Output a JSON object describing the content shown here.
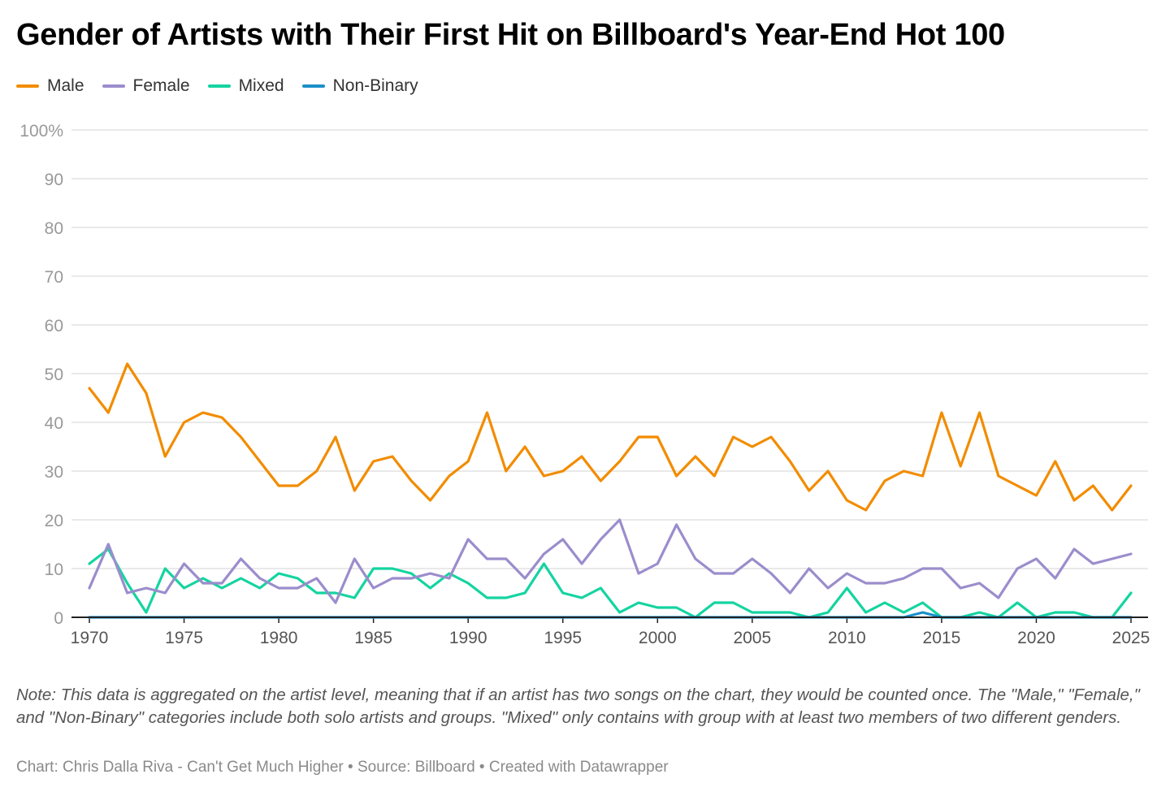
{
  "title": "Gender of Artists with Their First Hit on Billboard's Year-End Hot 100",
  "note": "Note: This data is aggregated on the artist level, meaning that if an artist has two songs on the chart, they would be counted once. The \"Male,\" \"Female,\" and \"Non-Binary\" categories include both solo artists and groups. \"Mixed\" only contains with group with at least two members of two different genders.",
  "credit": "Chart: Chris Dalla Riva - Can't Get Much Higher • Source: Billboard • Created with Datawrapper",
  "chart_data": {
    "type": "line",
    "title": "Gender of Artists with Their First Hit on Billboard's Year-End Hot 100",
    "xlabel": "",
    "ylabel": "",
    "xlim": [
      1970,
      2025
    ],
    "ylim": [
      0,
      100
    ],
    "y_ticks": [
      0,
      10,
      20,
      30,
      40,
      50,
      60,
      70,
      80,
      90,
      100
    ],
    "y_tick_labels": [
      "0",
      "10",
      "20",
      "30",
      "40",
      "50",
      "60",
      "70",
      "80",
      "90",
      "100%"
    ],
    "x_ticks": [
      1970,
      1975,
      1980,
      1985,
      1990,
      1995,
      2000,
      2005,
      2010,
      2015,
      2020,
      2025
    ],
    "x_tick_labels": [
      "1970",
      "1975",
      "1980",
      "1985",
      "1990",
      "1995",
      "2000",
      "2005",
      "2010",
      "2015",
      "2020",
      "2025"
    ],
    "legend_position": "top-left",
    "grid": true,
    "x": [
      1970,
      1971,
      1972,
      1973,
      1974,
      1975,
      1976,
      1977,
      1978,
      1979,
      1980,
      1981,
      1982,
      1983,
      1984,
      1985,
      1986,
      1987,
      1988,
      1989,
      1990,
      1991,
      1992,
      1993,
      1994,
      1995,
      1996,
      1997,
      1998,
      1999,
      2000,
      2001,
      2002,
      2003,
      2004,
      2005,
      2006,
      2007,
      2008,
      2009,
      2010,
      2011,
      2012,
      2013,
      2014,
      2015,
      2016,
      2017,
      2018,
      2019,
      2020,
      2021,
      2022,
      2023,
      2024,
      2025
    ],
    "series": [
      {
        "name": "Male",
        "color": "#f28c00",
        "values": [
          47,
          42,
          52,
          46,
          33,
          40,
          42,
          41,
          37,
          32,
          27,
          27,
          30,
          37,
          26,
          32,
          33,
          28,
          24,
          29,
          32,
          42,
          30,
          35,
          29,
          30,
          33,
          28,
          32,
          37,
          37,
          29,
          33,
          29,
          37,
          35,
          37,
          32,
          26,
          30,
          24,
          22,
          28,
          30,
          29,
          42,
          31,
          42,
          29,
          27,
          25,
          32,
          24,
          27,
          22,
          27
        ]
      },
      {
        "name": "Female",
        "color": "#9b8dcc",
        "values": [
          6,
          15,
          5,
          6,
          5,
          11,
          7,
          7,
          12,
          8,
          6,
          6,
          8,
          3,
          12,
          6,
          8,
          8,
          9,
          8,
          16,
          12,
          12,
          8,
          13,
          16,
          11,
          16,
          20,
          9,
          11,
          19,
          12,
          9,
          9,
          12,
          9,
          5,
          10,
          6,
          9,
          7,
          7,
          8,
          10,
          10,
          6,
          7,
          4,
          10,
          12,
          8,
          14,
          11,
          12,
          13
        ]
      },
      {
        "name": "Mixed",
        "color": "#14d4a0",
        "values": [
          11,
          14,
          7,
          1,
          10,
          6,
          8,
          6,
          8,
          6,
          9,
          8,
          5,
          5,
          4,
          10,
          10,
          9,
          6,
          9,
          7,
          4,
          4,
          5,
          11,
          5,
          4,
          6,
          1,
          3,
          2,
          2,
          0,
          3,
          3,
          1,
          1,
          1,
          0,
          1,
          6,
          1,
          3,
          1,
          3,
          0,
          0,
          1,
          0,
          3,
          0,
          1,
          1,
          0,
          0,
          5
        ]
      },
      {
        "name": "Non-Binary",
        "color": "#1a8fc9",
        "values": [
          0,
          0,
          0,
          0,
          0,
          0,
          0,
          0,
          0,
          0,
          0,
          0,
          0,
          0,
          0,
          0,
          0,
          0,
          0,
          0,
          0,
          0,
          0,
          0,
          0,
          0,
          0,
          0,
          0,
          0,
          0,
          0,
          0,
          0,
          0,
          0,
          0,
          0,
          0,
          0,
          0,
          0,
          0,
          0,
          1,
          0,
          0,
          0,
          0,
          0,
          0,
          0,
          0,
          0,
          0,
          0
        ]
      }
    ]
  }
}
